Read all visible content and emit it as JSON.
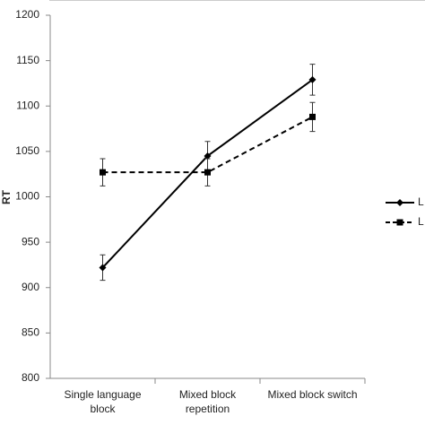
{
  "chart_data": {
    "type": "line",
    "y_label": "RT",
    "categories": [
      "Single language block",
      "Mixed block repetition",
      "Mixed block switch"
    ],
    "series": [
      {
        "name": "L",
        "color": "#000000",
        "dash": "solid",
        "marker": "diamond",
        "values": [
          922,
          1045,
          1129
        ],
        "errors": [
          14,
          16,
          17
        ]
      },
      {
        "name": "L",
        "color": "#000000",
        "dash": "dashed",
        "marker": "square",
        "values": [
          1027,
          1027,
          1088
        ],
        "errors": [
          15,
          15,
          16
        ]
      }
    ],
    "ylim": [
      800,
      1200
    ],
    "yticks": [
      800,
      850,
      900,
      950,
      1000,
      1050,
      1100,
      1150,
      1200
    ],
    "grid": false,
    "legend": "right"
  }
}
